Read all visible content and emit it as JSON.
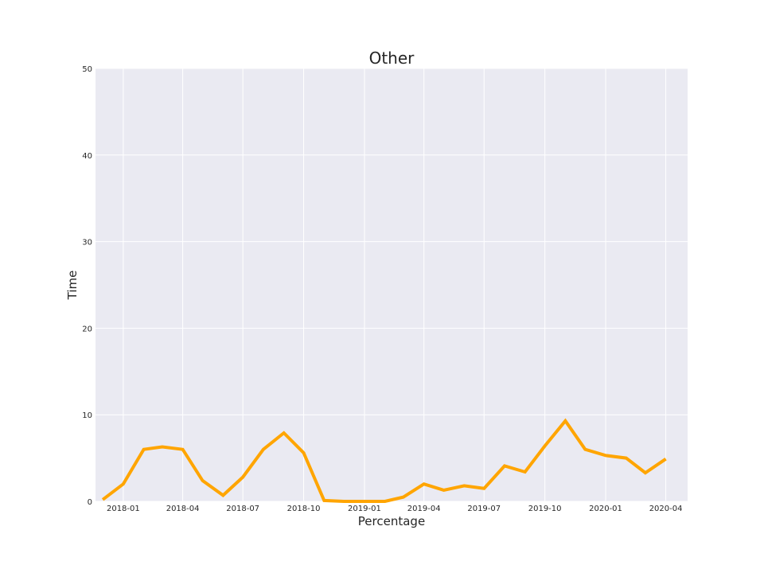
{
  "chart_data": {
    "type": "line",
    "title": "Other",
    "xlabel": "Percentage",
    "ylabel": "Time",
    "ylim": [
      0,
      50
    ],
    "xlim": [
      "2017-11-20",
      "2020-05-04"
    ],
    "grid": true,
    "style": "seaborn-darkgrid",
    "x_ticks": [
      "2018-01",
      "2018-04",
      "2018-07",
      "2018-10",
      "2019-01",
      "2019-04",
      "2019-07",
      "2019-10",
      "2020-01",
      "2020-04"
    ],
    "y_ticks": [
      0,
      10,
      20,
      30,
      40,
      50
    ],
    "series": [
      {
        "color": "#ffa500",
        "x": [
          "2017-12-01",
          "2018-01-01",
          "2018-02-01",
          "2018-03-01",
          "2018-04-01",
          "2018-05-01",
          "2018-06-01",
          "2018-07-01",
          "2018-08-01",
          "2018-09-01",
          "2018-10-01",
          "2018-11-01",
          "2018-12-01",
          "2019-01-01",
          "2019-02-01",
          "2019-03-01",
          "2019-04-01",
          "2019-05-01",
          "2019-06-01",
          "2019-07-01",
          "2019-08-01",
          "2019-09-01",
          "2019-10-01",
          "2019-11-01",
          "2019-12-01",
          "2020-01-01",
          "2020-02-01",
          "2020-03-01",
          "2020-04-01"
        ],
        "y": [
          0.2,
          2.0,
          6.0,
          6.3,
          6.0,
          2.4,
          0.7,
          2.8,
          6.0,
          7.9,
          5.6,
          0.1,
          0.0,
          0.0,
          0.0,
          0.5,
          2.0,
          1.3,
          1.8,
          1.5,
          4.1,
          3.4,
          6.4,
          9.3,
          6.0,
          5.3,
          5.0,
          3.3,
          4.9
        ]
      }
    ]
  }
}
